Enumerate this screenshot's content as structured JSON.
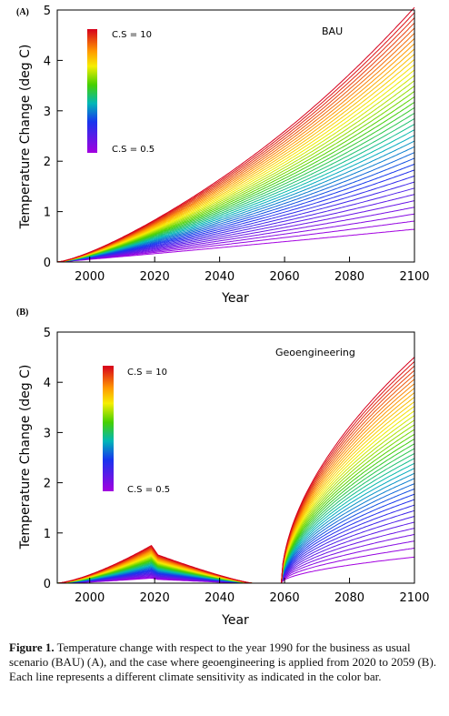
{
  "chart_data": [
    {
      "panel_label": "(A)",
      "type": "line",
      "title": "BAU",
      "xlabel": "Year",
      "ylabel": "Temperature Change (deg C)",
      "xlim": [
        1990,
        2100
      ],
      "ylim": [
        0,
        5
      ],
      "xticks": [
        2000,
        2020,
        2040,
        2060,
        2080,
        2100
      ],
      "yticks": [
        0,
        1,
        2,
        3,
        4,
        5
      ],
      "colorbar": {
        "top_label": "C.S = 10",
        "bottom_label": "C.S = 0.5",
        "min": 0.5,
        "max": 10,
        "colormap": "rainbow"
      },
      "series_count": 40,
      "series_descriptor": "one line per climate sensitivity from 0.5 (violet) to 10 (red)",
      "series": [
        {
          "name": "C.S = 0.5",
          "x": [
            1990,
            2000,
            2020,
            2040,
            2060,
            2080,
            2100
          ],
          "y": [
            0,
            0.05,
            0.15,
            0.3,
            0.45,
            0.55,
            0.65
          ]
        },
        {
          "name": "C.S = 10",
          "x": [
            1990,
            2000,
            2020,
            2040,
            2060,
            2080,
            2100
          ],
          "y": [
            0,
            0.2,
            0.8,
            1.75,
            2.7,
            3.95,
            5.05
          ]
        }
      ]
    },
    {
      "panel_label": "(B)",
      "type": "line",
      "title": "Geoengineering",
      "xlabel": "Year",
      "ylabel": "Temperature Change (deg C)",
      "xlim": [
        1990,
        2100
      ],
      "ylim": [
        0,
        5
      ],
      "xticks": [
        2000,
        2020,
        2040,
        2060,
        2080,
        2100
      ],
      "yticks": [
        0,
        1,
        2,
        3,
        4,
        5
      ],
      "colorbar": {
        "top_label": "C.S = 10",
        "bottom_label": "C.S = 0.5",
        "min": 0.5,
        "max": 10,
        "colormap": "rainbow"
      },
      "series_count": 40,
      "series_descriptor": "geoengineering applied 2020-2059; cooling then rebound after 2059",
      "series": [
        {
          "name": "C.S = 0.5",
          "x": [
            1990,
            2019,
            2020,
            2050,
            2059,
            2060,
            2080,
            2100
          ],
          "y": [
            0,
            0.1,
            0.05,
            0,
            0,
            0.15,
            0.42,
            0.52
          ]
        },
        {
          "name": "C.S = 10",
          "x": [
            1990,
            2019,
            2020,
            2050,
            2059,
            2060,
            2080,
            2100
          ],
          "y": [
            0,
            0.75,
            0.6,
            0,
            0,
            1.2,
            3.1,
            4.5
          ]
        }
      ]
    }
  ],
  "caption": {
    "label": "Figure 1.",
    "text": "Temperature change with respect to the year 1990 for the business as usual scenario (BAU) (A), and the case where geoengineering is applied from 2020 to 2059 (B). Each line represents a different climate sensitivity as indicated in the color bar."
  }
}
